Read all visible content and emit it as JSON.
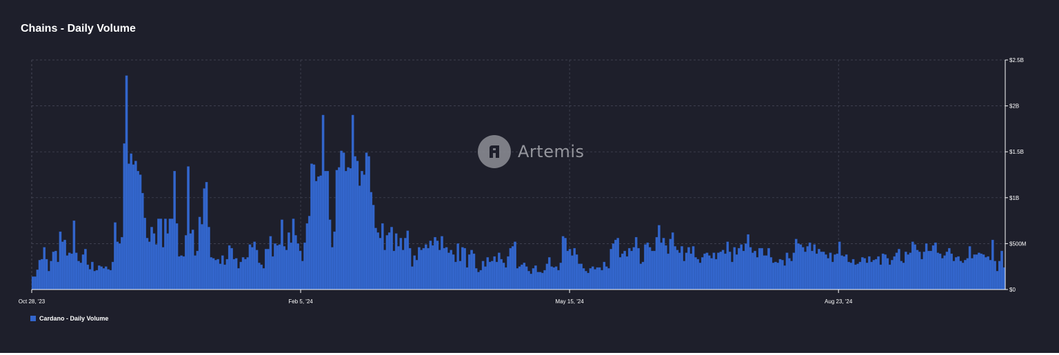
{
  "page": {
    "title": "Chains - Daily Volume"
  },
  "watermark": {
    "text": "Artemis",
    "icon": "artemis-logo-icon"
  },
  "colors": {
    "background": "#1e1f2b",
    "bar": "#3366cc",
    "grid": "#4a4c5c",
    "text": "#ffffff"
  },
  "chart_data": {
    "type": "bar",
    "title": "Chains - Daily Volume",
    "xlabel": "",
    "ylabel": "",
    "x_ticks": [
      "Oct 28, '23",
      "Feb 5, '24",
      "May 15, '24",
      "Aug 23, '24"
    ],
    "y_ticks": [
      "$0",
      "$500M",
      "$1B",
      "$1.5B",
      "$2B",
      "$2.5B"
    ],
    "ylim": [
      0,
      2500000000
    ],
    "grid": true,
    "legend": "bottom-left",
    "series": [
      {
        "name": "Cardano - Daily Volume",
        "color": "#3366cc",
        "x_start": "2023-10-28",
        "x_end": "2024-10-23",
        "values_millions": [
          140,
          140,
          215,
          320,
          330,
          460,
          330,
          200,
          310,
          410,
          420,
          300,
          630,
          520,
          540,
          370,
          400,
          390,
          750,
          400,
          310,
          290,
          380,
          440,
          270,
          220,
          300,
          200,
          210,
          260,
          250,
          230,
          250,
          220,
          210,
          300,
          730,
          520,
          500,
          570,
          1590,
          2330,
          1370,
          1480,
          1360,
          1400,
          1290,
          1250,
          1050,
          780,
          560,
          520,
          680,
          610,
          490,
          770,
          770,
          460,
          770,
          610,
          770,
          770,
          1290,
          720,
          360,
          370,
          360,
          590,
          1340,
          610,
          650,
          370,
          420,
          790,
          710,
          1100,
          1170,
          680,
          350,
          340,
          320,
          330,
          280,
          370,
          270,
          330,
          480,
          450,
          330,
          340,
          230,
          300,
          350,
          330,
          350,
          490,
          460,
          520,
          430,
          290,
          270,
          230,
          440,
          440,
          580,
          360,
          500,
          480,
          490,
          760,
          470,
          430,
          620,
          510,
          770,
          590,
          500,
          420,
          310,
          510,
          720,
          800,
          1370,
          1360,
          1180,
          1230,
          1240,
          1900,
          1290,
          1290,
          760,
          460,
          630,
          1300,
          1330,
          1510,
          1490,
          1290,
          1330,
          1320,
          1900,
          1450,
          1400,
          1130,
          1290,
          1250,
          1490,
          1450,
          1060,
          920,
          670,
          620,
          560,
          720,
          430,
          590,
          620,
          680,
          420,
          610,
          470,
          560,
          430,
          560,
          640,
          450,
          250,
          370,
          320,
          460,
          430,
          450,
          490,
          450,
          530,
          480,
          570,
          530,
          430,
          580,
          450,
          460,
          400,
          430,
          380,
          300,
          500,
          310,
          460,
          450,
          240,
          380,
          430,
          390,
          230,
          190,
          210,
          310,
          250,
          350,
          300,
          310,
          360,
          300,
          400,
          330,
          290,
          240,
          360,
          450,
          470,
          520,
          230,
          250,
          270,
          290,
          250,
          200,
          170,
          230,
          260,
          190,
          190,
          180,
          210,
          280,
          350,
          250,
          240,
          250,
          210,
          290,
          580,
          560,
          420,
          440,
          370,
          450,
          380,
          280,
          280,
          230,
          200,
          180,
          230,
          250,
          220,
          240,
          240,
          210,
          300,
          250,
          230,
          440,
          500,
          540,
          560,
          350,
          390,
          420,
          360,
          450,
          420,
          460,
          570,
          450,
          280,
          300,
          490,
          510,
          460,
          420,
          420,
          570,
          700,
          510,
          560,
          480,
          390,
          550,
          620,
          470,
          430,
          400,
          470,
          310,
          400,
          460,
          390,
          470,
          350,
          330,
          290,
          350,
          390,
          400,
          370,
          340,
          400,
          330,
          400,
          410,
          430,
          390,
          520,
          410,
          300,
          460,
          380,
          450,
          490,
          420,
          500,
          600,
          460,
          400,
          420,
          350,
          450,
          450,
          370,
          370,
          450,
          350,
          290,
          300,
          290,
          330,
          320,
          260,
          400,
          340,
          310,
          400,
          550,
          500,
          490,
          460,
          410,
          470,
          510,
          420,
          490,
          390,
          440,
          410,
          410,
          380,
          340,
          400,
          300,
          380,
          390,
          520,
          370,
          360,
          380,
          300,
          290,
          330,
          270,
          280,
          300,
          350,
          340,
          290,
          360,
          300,
          320,
          330,
          360,
          270,
          390,
          380,
          340,
          270,
          320,
          360,
          400,
          440,
          310,
          290,
          410,
          380,
          400,
          520,
          490,
          430,
          410,
          330,
          410,
          500,
          420,
          420,
          480,
          510,
          400,
          390,
          340,
          370,
          410,
          450,
          390,
          310,
          350,
          360,
          310,
          290,
          320,
          340,
          470,
          340,
          380,
          380,
          400,
          390,
          380,
          350,
          360,
          320,
          540,
          310,
          200,
          310,
          420,
          240
        ]
      }
    ]
  }
}
